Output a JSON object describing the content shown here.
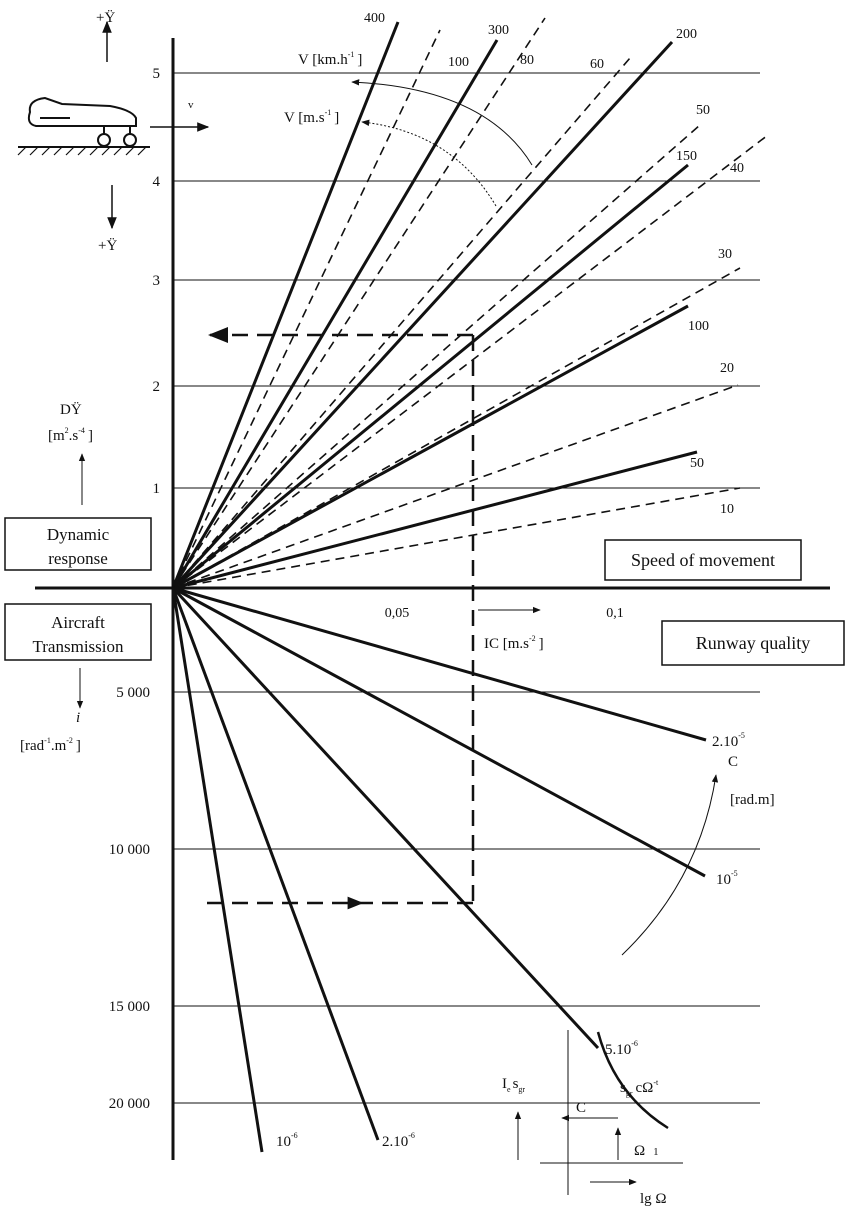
{
  "axes": {
    "upper_ticks": [
      "5",
      "4",
      "3",
      "2",
      "1"
    ],
    "x_ticks": [
      "0,05",
      "0,1"
    ],
    "lower_ticks": [
      "5 000",
      "10 000",
      "15 000",
      "20 000"
    ]
  },
  "speed_kmh": [
    "400",
    "300",
    "200",
    "150",
    "100",
    "50"
  ],
  "speed_ms": [
    "100",
    "80",
    "60",
    "50",
    "40",
    "30",
    "20",
    "10"
  ],
  "runway_c": [
    {
      "base": "2.10",
      "exp": "-5"
    },
    {
      "base": "10",
      "exp": "-5"
    },
    {
      "base": "5.10",
      "exp": "-6"
    },
    {
      "base": "2.10",
      "exp": "-6"
    },
    {
      "base": "10",
      "exp": "-6"
    }
  ],
  "labels": {
    "accel_up": "+Ÿ",
    "accel_down": "+Ÿ",
    "velocity": "v",
    "v_kmh": {
      "base": "V [km.h",
      "exp": "-1",
      "end": "]"
    },
    "v_ms": {
      "base": "V [m.s",
      "exp": "-1",
      "end": "]"
    },
    "dy": "DŸ",
    "dy_unit": {
      "base": "[m",
      "exp1": "2",
      "mid": ".s",
      "exp2": "-4",
      "end": "]"
    },
    "ic": {
      "base": "IC [m.s",
      "exp": "-2",
      "end": "]"
    },
    "i": "i",
    "i_unit": {
      "base": "[rad",
      "exp1": "-1",
      "mid": ".m",
      "exp2": "-2",
      "end": "]"
    },
    "c": "C",
    "c_unit": "[rad.m]"
  },
  "boxes": {
    "dynamic_response": [
      "Dynamic",
      "response"
    ],
    "speed_of_movement": "Speed of movement",
    "aircraft_transmission": [
      "Aircraft",
      "Transmission"
    ],
    "runway_quality": "Runway quality"
  },
  "inset": {
    "ie": "I",
    "ie_sub": "e",
    "s": "s",
    "s_sub": "gr",
    "c": "C",
    "curve_s": "s",
    "curve_sub": "gr",
    "curve_rest": "cΩ",
    "curve_exp": "-t",
    "omega": "Ω",
    "one": "1",
    "lg": "lg Ω"
  }
}
